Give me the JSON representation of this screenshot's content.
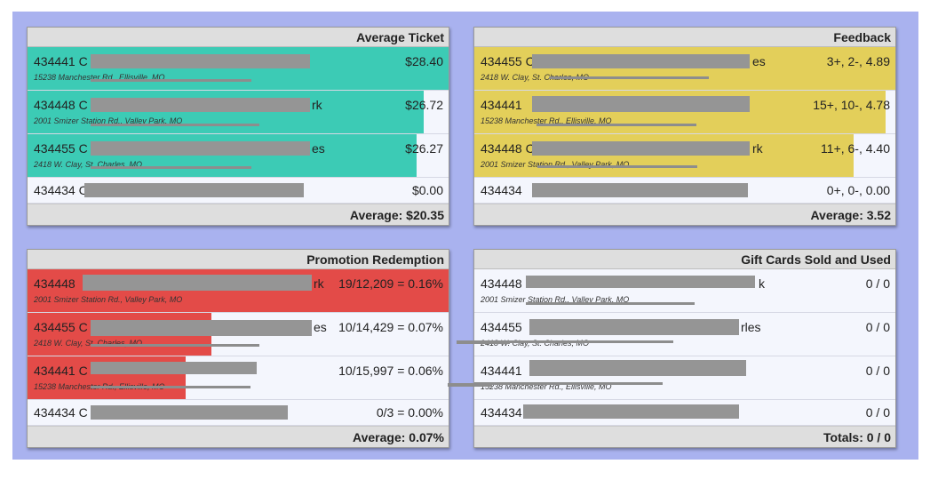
{
  "colors": {
    "background": "#a9b2ef",
    "average_ticket_fill": "#3ccbb5",
    "feedback_fill": "#e3cf5a",
    "promotion_fill": "#e34b48",
    "gift_cards_fill": "#f4f6fd"
  },
  "panels": {
    "average_ticket": {
      "title": "Average Ticket",
      "rows": [
        {
          "name": "434441 C",
          "address": "15238 Manchester Rd., Ellisville, MO",
          "value": "$28.40",
          "fill": 1.0
        },
        {
          "name": "434448 C",
          "name_tail": "rk",
          "address": "2001 Smizer Station Rd., Valley Park, MO",
          "value": "$26.72",
          "fill": 0.94
        },
        {
          "name": "434455 C",
          "name_tail": "es",
          "address": "2418 W. Clay, St. Charles, MO",
          "value": "$26.27",
          "fill": 0.925
        },
        {
          "name": "434434 C",
          "address": "",
          "value": "$0.00",
          "fill": 0.0
        }
      ],
      "footer": "Average: $20.35"
    },
    "feedback": {
      "title": "Feedback",
      "rows": [
        {
          "name": "434455 C",
          "name_tail": "es",
          "address": "2418 W. Clay, St. Charles, MO",
          "value": "3+, 2-, 4.89",
          "fill": 1.0
        },
        {
          "name": "434441",
          "address": "15238 Manchester Rd., Ellisville, MO",
          "value": "15+, 10-, 4.78",
          "fill": 0.977
        },
        {
          "name": "434448 C",
          "name_tail": "rk",
          "address": "2001 Smizer Station Rd., Valley Park, MO",
          "value": "11+, 6-, 4.40",
          "fill": 0.9
        },
        {
          "name": "434434",
          "address": "",
          "value": "0+, 0-, 0.00",
          "fill": 0.0
        }
      ],
      "footer": "Average: 3.52"
    },
    "promotion_redemption": {
      "title": "Promotion Redemption",
      "rows": [
        {
          "name": "434448",
          "name_tail": "rk",
          "address": "2001 Smizer Station Rd., Valley Park, MO",
          "value": "19/12,209 = 0.16%",
          "fill": 1.0
        },
        {
          "name": "434455 C",
          "name_tail": "es",
          "address": "2418 W. Clay, St. Charles, MO",
          "value": "10/14,429 = 0.07%",
          "fill": 0.4375
        },
        {
          "name": "434441 C",
          "address": "15238 Manchester Rd., Ellisville, MO",
          "value": "10/15,997 = 0.06%",
          "fill": 0.375
        },
        {
          "name": "434434 C",
          "address": "",
          "value": "0/3 = 0.00%",
          "fill": 0.0
        }
      ],
      "footer": "Average: 0.07%"
    },
    "gift_cards": {
      "title": "Gift Cards Sold and Used",
      "rows": [
        {
          "name": "434448",
          "name_tail": "k",
          "address": "2001 Smizer Station Rd., Valley Park, MO",
          "value": "0 / 0",
          "fill": 0.0
        },
        {
          "name": "434455",
          "name_tail": "rles",
          "address": "2418 W. Clay, St. Charles, MO",
          "value": "0 / 0",
          "fill": 0.0
        },
        {
          "name": "434441",
          "address": "15238 Manchester Rd., Ellisville, MO",
          "value": "0 / 0",
          "fill": 0.0
        },
        {
          "name": "434434",
          "address": "",
          "value": "0 / 0",
          "fill": 0.0
        }
      ],
      "footer": "Totals: 0 / 0"
    }
  }
}
